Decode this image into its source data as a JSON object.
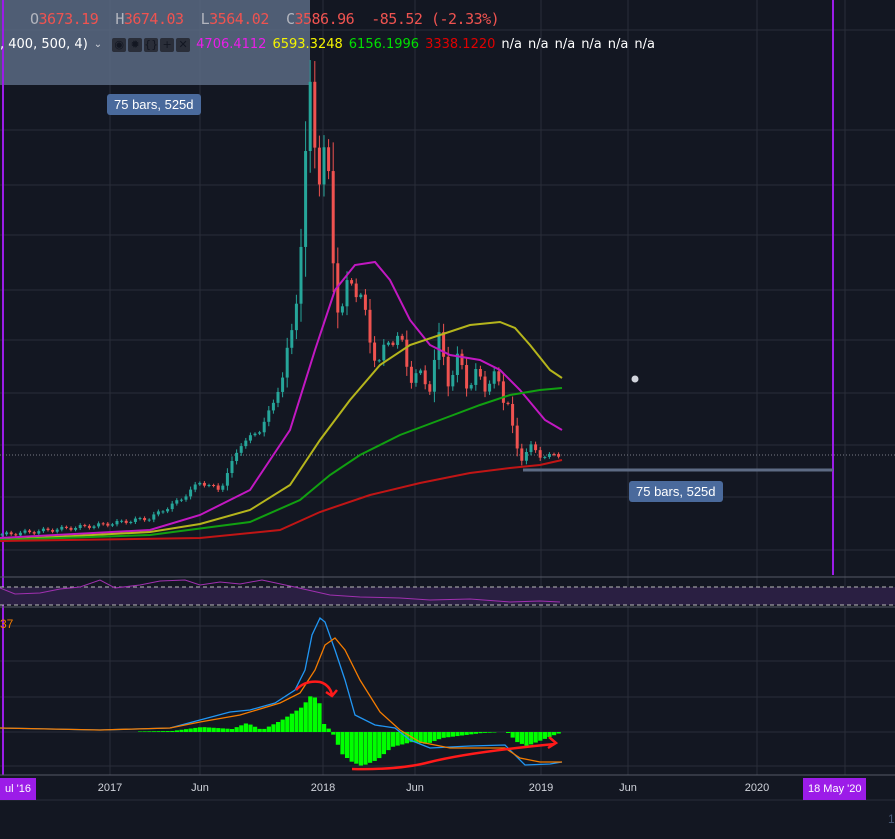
{
  "legend": {
    "o_label": "O",
    "o": "3673.19",
    "h_label": "H",
    "h": "3674.03",
    "l_label": "L",
    "l": "3564.02",
    "c_label": "C",
    "c": "3586.96",
    "change": "-85.52 (-2.33%)"
  },
  "indicator": {
    "params": ", 400, 500, 4)",
    "values": [
      "4706.4112",
      "6593.3248",
      "6156.1996",
      "3338.1220"
    ],
    "na": [
      "n/a",
      "n/a",
      "n/a",
      "n/a",
      "n/a",
      "n/a"
    ],
    "colors": [
      "#e91ee9",
      "#f5f500",
      "#00e000",
      "#e00000"
    ]
  },
  "measure": {
    "top": "75 bars, 525d",
    "bottom": "75 bars, 525d"
  },
  "macd_label": "37",
  "time_axis": {
    "labels": [
      "2017",
      "Jun",
      "2018",
      "Jun",
      "2019",
      "Jun",
      "2020"
    ],
    "start_pill": "ul '16",
    "end_pill": "18 May '20"
  },
  "corner": "1"
}
